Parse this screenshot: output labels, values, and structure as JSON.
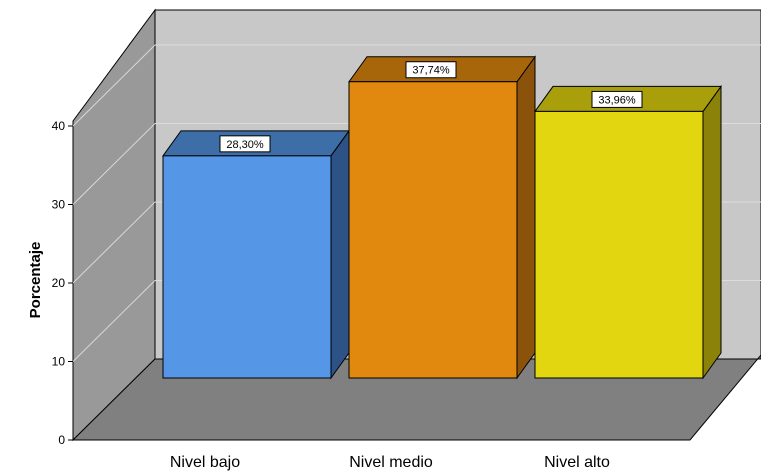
{
  "chart_data": {
    "type": "bar",
    "style": "3d",
    "categories": [
      "Nivel bajo",
      "Nivel medio",
      "Nivel alto"
    ],
    "values": [
      28.3,
      37.74,
      33.96
    ],
    "data_labels": [
      "28,30%",
      "37,74%",
      "33,96%"
    ],
    "colors": {
      "front": [
        "#5596e6",
        "#e1880f",
        "#e1d60f"
      ],
      "top": [
        "#3d6ea8",
        "#a8660b",
        "#a89f0b"
      ],
      "side": [
        "#2c5286",
        "#8a520a",
        "#8a8209"
      ],
      "back_wall": "#c8c8c8",
      "side_wall": "#999999",
      "floor": "#808080"
    },
    "ylabel": "Porcentaje",
    "xlabel": "",
    "title": "",
    "ylim": [
      0,
      40
    ],
    "yticks": [
      "0",
      "10",
      "20",
      "30",
      "40"
    ],
    "grid": true
  }
}
